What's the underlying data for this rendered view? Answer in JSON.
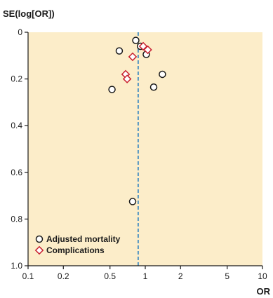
{
  "chart_data": {
    "type": "scatter",
    "title": "",
    "xlabel": "OR",
    "ylabel": "SE(log[OR])",
    "x_scale": "log",
    "xlim": [
      0.1,
      10
    ],
    "ylim": [
      0,
      1.0
    ],
    "y_inverted": true,
    "x_ticks": [
      0.1,
      0.2,
      0.5,
      1,
      2,
      5,
      10
    ],
    "x_tick_labels": [
      "0.1",
      "0.2",
      "0.5",
      "1",
      "2",
      "5",
      "10"
    ],
    "y_ticks": [
      0,
      0.2,
      0.4,
      0.6,
      0.8,
      1.0
    ],
    "y_tick_labels": [
      "0",
      "0.2",
      "0.4",
      "0.6",
      "0.8",
      "1.0"
    ],
    "reference_line": {
      "x": 0.87,
      "style": "dashed",
      "color": "#2a7fc1"
    },
    "grid": false,
    "legend_position": "bottom-left",
    "series": [
      {
        "name": "Adjusted mortality",
        "marker": "circle",
        "color": "#1a1a1a",
        "points": [
          {
            "x": 0.83,
            "y": 0.035
          },
          {
            "x": 0.91,
            "y": 0.06
          },
          {
            "x": 1.02,
            "y": 0.095
          },
          {
            "x": 0.6,
            "y": 0.08
          },
          {
            "x": 1.4,
            "y": 0.18
          },
          {
            "x": 1.18,
            "y": 0.235
          },
          {
            "x": 0.52,
            "y": 0.245
          },
          {
            "x": 0.78,
            "y": 0.725
          }
        ]
      },
      {
        "name": "Complications",
        "marker": "diamond",
        "color": "#c8202f",
        "points": [
          {
            "x": 0.96,
            "y": 0.06
          },
          {
            "x": 1.05,
            "y": 0.075
          },
          {
            "x": 0.78,
            "y": 0.105
          },
          {
            "x": 0.68,
            "y": 0.18
          },
          {
            "x": 0.7,
            "y": 0.2
          }
        ]
      }
    ],
    "colors": {
      "plot_background": "#fcedc9",
      "axis": "#1a1a1a"
    }
  }
}
